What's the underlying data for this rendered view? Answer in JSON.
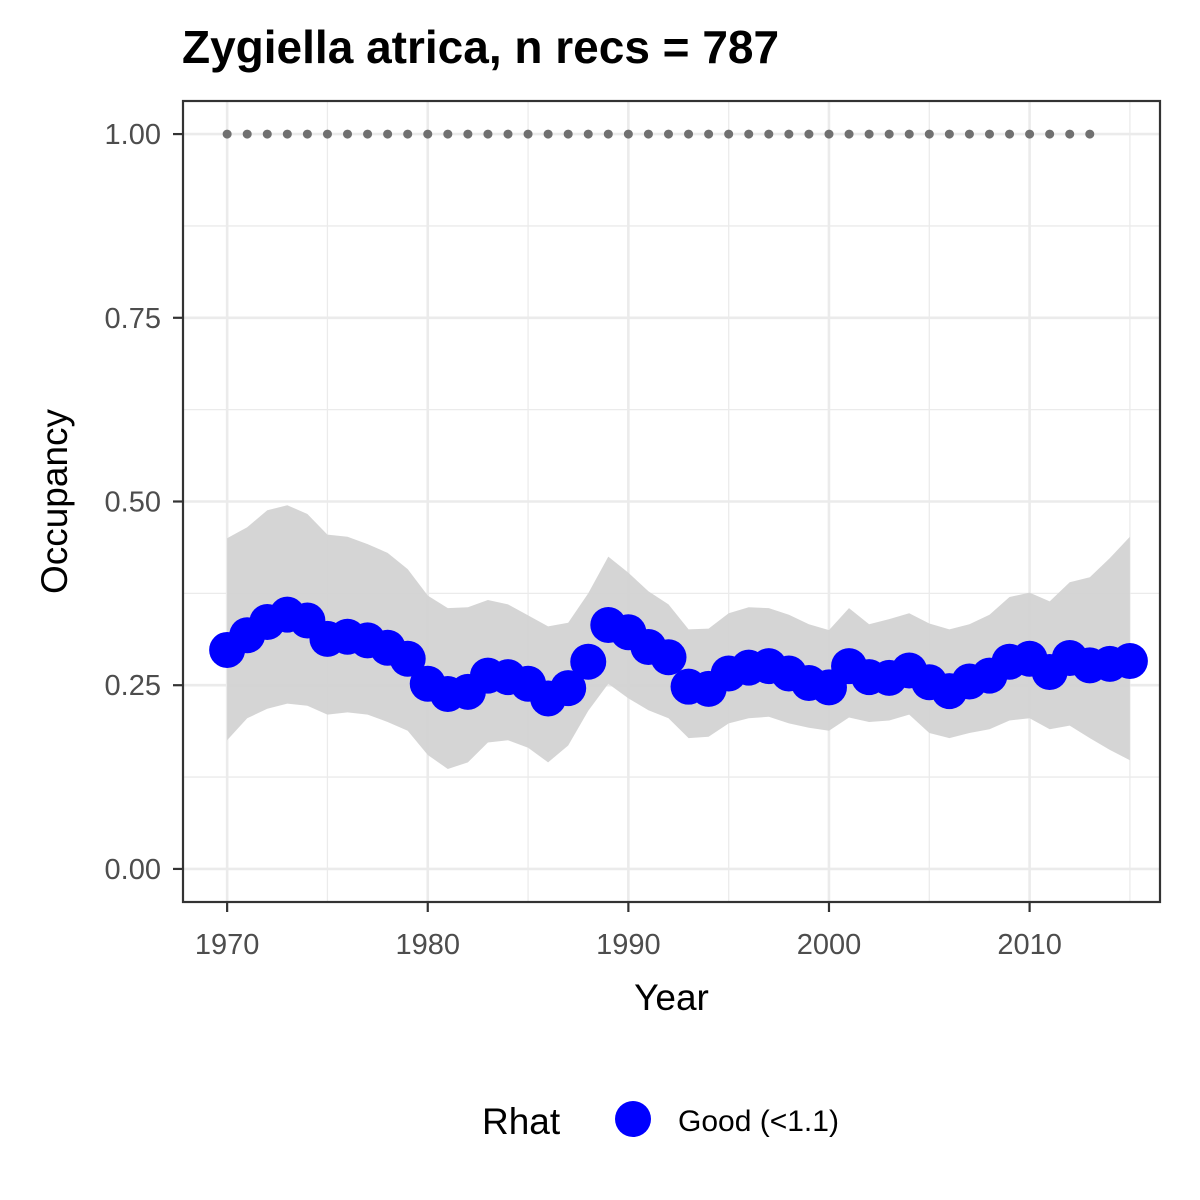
{
  "chart_data": {
    "type": "line",
    "title": "Zygiella atrica, n recs = 787",
    "xlabel": "Year",
    "ylabel": "Occupancy",
    "xlim": [
      1967.8,
      1917.2
    ],
    "ylim": [
      -0.045,
      1.045
    ],
    "x_ticks": [
      1970,
      1980,
      1990,
      2000,
      2010
    ],
    "x_tick_labels": [
      "1970",
      "1980",
      "1990",
      "2000",
      "2010"
    ],
    "y_ticks": [
      0,
      0.25,
      0.5,
      0.75,
      1
    ],
    "y_tick_labels": [
      "0.00",
      "0.25",
      "0.50",
      "0.75",
      "1.00"
    ],
    "grid": true,
    "legend": {
      "title": "Rhat",
      "entries": [
        "Good (<1.1)"
      ],
      "placement": "bottom"
    },
    "colors": {
      "points": "#0000ff",
      "ribbon": "#d3d3d3",
      "reference_dots": "#707070",
      "panel_border": "#333333",
      "grid": "#ebebeb"
    },
    "years": [
      1970,
      1971,
      1972,
      1973,
      1974,
      1975,
      1976,
      1977,
      1978,
      1979,
      1980,
      1981,
      1982,
      1983,
      1984,
      1985,
      1986,
      1987,
      1988,
      1989,
      1990,
      1991,
      1992,
      1993,
      1994,
      1995,
      1996,
      1997,
      1998,
      1999,
      2000,
      2001,
      2002,
      2003,
      2004,
      2005,
      2006,
      2007,
      2008,
      2009,
      2010,
      2011,
      2012,
      2013,
      2014,
      2015
    ],
    "series": [
      {
        "kind": "points",
        "values": [
          0.298,
          0.318,
          0.336,
          0.346,
          0.338,
          0.313,
          0.316,
          0.311,
          0.301,
          0.286,
          0.252,
          0.238,
          0.241,
          0.263,
          0.261,
          0.252,
          0.232,
          0.246,
          0.282,
          0.332,
          0.322,
          0.302,
          0.288,
          0.248,
          0.245,
          0.266,
          0.274,
          0.276,
          0.266,
          0.253,
          0.247,
          0.276,
          0.261,
          0.26,
          0.27,
          0.254,
          0.242,
          0.255,
          0.263,
          0.282,
          0.286,
          0.268,
          0.287,
          0.277,
          0.279,
          0.283
        ]
      },
      {
        "kind": "ribbon",
        "lower": [
          0.175,
          0.205,
          0.218,
          0.225,
          0.222,
          0.21,
          0.213,
          0.21,
          0.2,
          0.188,
          0.155,
          0.136,
          0.145,
          0.172,
          0.175,
          0.165,
          0.145,
          0.168,
          0.215,
          0.252,
          0.232,
          0.216,
          0.205,
          0.178,
          0.18,
          0.198,
          0.205,
          0.207,
          0.198,
          0.192,
          0.188,
          0.206,
          0.2,
          0.202,
          0.21,
          0.185,
          0.178,
          0.185,
          0.19,
          0.202,
          0.205,
          0.19,
          0.195,
          0.178,
          0.162,
          0.148
        ],
        "upper": [
          0.45,
          0.465,
          0.488,
          0.495,
          0.483,
          0.455,
          0.452,
          0.442,
          0.43,
          0.408,
          0.372,
          0.355,
          0.356,
          0.366,
          0.36,
          0.345,
          0.33,
          0.335,
          0.375,
          0.425,
          0.403,
          0.378,
          0.36,
          0.326,
          0.327,
          0.348,
          0.356,
          0.355,
          0.346,
          0.333,
          0.325,
          0.355,
          0.333,
          0.34,
          0.348,
          0.334,
          0.326,
          0.333,
          0.346,
          0.37,
          0.376,
          0.364,
          0.39,
          0.397,
          0.423,
          0.452
        ]
      },
      {
        "kind": "reference_dots",
        "y": 1,
        "x_from": 1970,
        "x_to": 2013,
        "step": 1
      }
    ]
  }
}
